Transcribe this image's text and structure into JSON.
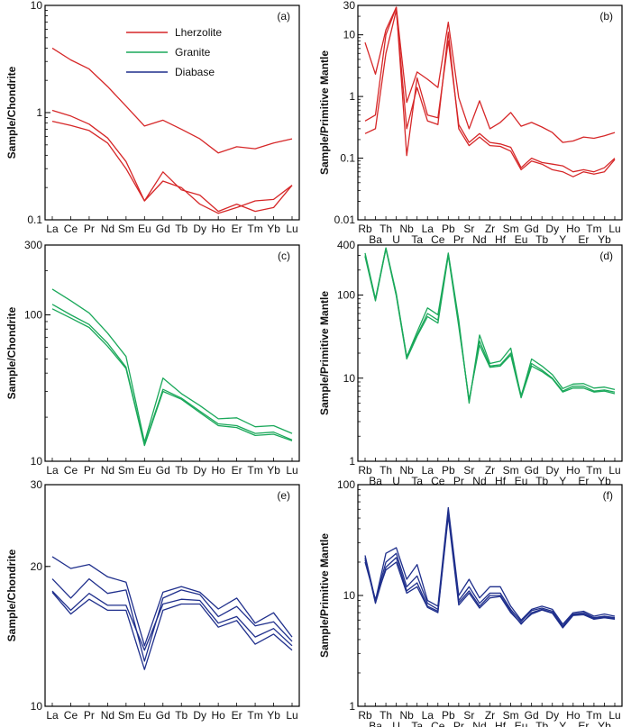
{
  "legend": [
    {
      "label": "Lherzolite",
      "color": "#d62728"
    },
    {
      "label": "Granite",
      "color": "#1aa85a"
    },
    {
      "label": "Diabase",
      "color": "#1f2f8c"
    }
  ],
  "chart_data": [
    {
      "type": "line",
      "panel": "(a)",
      "ylabel": "Sample/Chondrite",
      "yscale": "log",
      "ylim": [
        0.1,
        10
      ],
      "yticks": [
        {
          "v": 0.1,
          "t": "0.1"
        },
        {
          "v": 1,
          "t": "1"
        },
        {
          "v": 10,
          "t": "10"
        }
      ],
      "categories": [
        "La",
        "Ce",
        "Pr",
        "Nd",
        "Sm",
        "Eu",
        "Gd",
        "Tb",
        "Dy",
        "Ho",
        "Er",
        "Tm",
        "Yb",
        "Lu"
      ],
      "color": "#d62728",
      "series": [
        {
          "values": [
            4.0,
            3.1,
            2.55,
            1.75,
            1.15,
            0.75,
            0.85,
            0.7,
            0.57,
            0.42,
            0.48,
            0.46,
            0.52,
            0.57
          ]
        },
        {
          "values": [
            1.05,
            0.93,
            0.78,
            0.58,
            0.35,
            0.15,
            0.28,
            0.19,
            0.17,
            0.12,
            0.14,
            0.12,
            0.13,
            0.21
          ]
        },
        {
          "values": [
            0.83,
            0.76,
            0.68,
            0.52,
            0.3,
            0.15,
            0.23,
            0.2,
            0.14,
            0.115,
            0.13,
            0.15,
            0.155,
            0.21
          ]
        }
      ]
    },
    {
      "type": "line",
      "panel": "(b)",
      "ylabel": "Sample/Primitive Mantle",
      "yscale": "log",
      "ylim": [
        0.01,
        30
      ],
      "yticks": [
        {
          "v": 0.01,
          "t": "0.01"
        },
        {
          "v": 0.1,
          "t": "0.1"
        },
        {
          "v": 1,
          "t": "1"
        },
        {
          "v": 10,
          "t": "10"
        },
        {
          "v": 30,
          "t": "30"
        }
      ],
      "categories": [
        "Rb",
        "Ba",
        "Th",
        "U",
        "Nb",
        "Ta",
        "La",
        "Ce",
        "Pb",
        "Pr",
        "Sr",
        "Nd",
        "Zr",
        "Hf",
        "Sm",
        "Eu",
        "Gd",
        "Tb",
        "Dy",
        "Y",
        "Ho",
        "Er",
        "Tm",
        "Yb",
        "Lu"
      ],
      "color": "#d62728",
      "series": [
        {
          "values": [
            7.5,
            2.3,
            12,
            28,
            0.8,
            2.5,
            1.9,
            1.4,
            16,
            0.95,
            0.3,
            0.85,
            0.3,
            0.38,
            0.55,
            0.33,
            0.38,
            0.32,
            0.26,
            0.18,
            0.19,
            0.22,
            0.21,
            0.23,
            0.26
          ]
        },
        {
          "values": [
            0.4,
            0.5,
            10,
            28,
            0.11,
            2.0,
            0.5,
            0.45,
            8,
            0.35,
            0.18,
            0.25,
            0.18,
            0.17,
            0.15,
            0.07,
            0.1,
            0.085,
            0.08,
            0.075,
            0.06,
            0.065,
            0.06,
            0.07,
            0.1
          ]
        },
        {
          "values": [
            0.25,
            0.3,
            5,
            25,
            0.3,
            1.4,
            0.4,
            0.35,
            11,
            0.3,
            0.16,
            0.22,
            0.16,
            0.155,
            0.13,
            0.065,
            0.09,
            0.08,
            0.065,
            0.06,
            0.05,
            0.06,
            0.055,
            0.06,
            0.095
          ]
        }
      ]
    },
    {
      "type": "line",
      "panel": "(c)",
      "ylabel": "Sample/Chondrite",
      "yscale": "log",
      "ylim": [
        10,
        300
      ],
      "yticks": [
        {
          "v": 10,
          "t": "10"
        },
        {
          "v": 100,
          "t": "100"
        },
        {
          "v": 300,
          "t": "300"
        }
      ],
      "categories": [
        "La",
        "Ce",
        "Pr",
        "Nd",
        "Sm",
        "Eu",
        "Gd",
        "Tb",
        "Dy",
        "Ho",
        "Er",
        "Tm",
        "Yb",
        "Lu"
      ],
      "color": "#1aa85a",
      "series": [
        {
          "values": [
            150,
            125,
            103,
            75,
            52,
            13.5,
            37,
            29,
            24,
            19.5,
            19.8,
            17.2,
            17.5,
            15.5
          ]
        },
        {
          "values": [
            118,
            100,
            86,
            64,
            44,
            13,
            31,
            27,
            22,
            18,
            17.5,
            15.5,
            15.8,
            14
          ]
        },
        {
          "values": [
            110,
            95,
            82,
            61,
            43,
            12.8,
            30,
            26.5,
            21.5,
            17.5,
            17,
            15,
            15.3,
            13.8
          ]
        }
      ]
    },
    {
      "type": "line",
      "panel": "(d)",
      "ylabel": "Sample/Primitive Mantle",
      "yscale": "log",
      "ylim": [
        1,
        400
      ],
      "yticks": [
        {
          "v": 1,
          "t": "1"
        },
        {
          "v": 10,
          "t": "10"
        },
        {
          "v": 100,
          "t": "100"
        },
        {
          "v": 400,
          "t": "400"
        }
      ],
      "categories": [
        "Rb",
        "Ba",
        "Th",
        "U",
        "Nb",
        "Ta",
        "La",
        "Ce",
        "Pb",
        "Pr",
        "Sr",
        "Nd",
        "Zr",
        "Hf",
        "Sm",
        "Eu",
        "Gd",
        "Tb",
        "Dy",
        "Y",
        "Ho",
        "Er",
        "Tm",
        "Yb",
        "Lu"
      ],
      "color": "#1aa85a",
      "series": [
        {
          "values": [
            320,
            90,
            370,
            105,
            18,
            36,
            70,
            58,
            320,
            50,
            5,
            33,
            15,
            16,
            23,
            6,
            17,
            14,
            11,
            7.5,
            8.5,
            8.6,
            7.6,
            7.8,
            7.3
          ]
        },
        {
          "values": [
            300,
            88,
            365,
            100,
            18,
            33,
            60,
            50,
            310,
            45,
            5.2,
            28,
            14,
            14.5,
            20,
            6.2,
            15,
            12.5,
            10,
            7,
            8,
            8,
            7,
            7.2,
            6.8
          ]
        },
        {
          "values": [
            290,
            85,
            360,
            98,
            17,
            32,
            55,
            46,
            300,
            42,
            5.5,
            25,
            13.5,
            14,
            19,
            5.8,
            14,
            12,
            9.8,
            6.8,
            7.6,
            7.6,
            6.8,
            7,
            6.5
          ]
        }
      ]
    },
    {
      "type": "line",
      "panel": "(e)",
      "ylabel": "Sample/Chondrite",
      "yscale": "log",
      "ylim": [
        10,
        30
      ],
      "yticks": [
        {
          "v": 10,
          "t": "10"
        },
        {
          "v": 20,
          "t": "20"
        },
        {
          "v": 30,
          "t": "30"
        }
      ],
      "categories": [
        "La",
        "Ce",
        "Pr",
        "Nd",
        "Sm",
        "Eu",
        "Gd",
        "Tb",
        "Dy",
        "Ho",
        "Er",
        "Tm",
        "Yb",
        "Lu"
      ],
      "color": "#1f2f8c",
      "series": [
        {
          "values": [
            21,
            19.8,
            20.2,
            19,
            18.5,
            13.5,
            17.6,
            18.1,
            17.6,
            16.2,
            17.1,
            15.1,
            15.9,
            14.1
          ]
        },
        {
          "values": [
            18.8,
            17.1,
            18.8,
            17.5,
            17.8,
            12.5,
            17.1,
            17.8,
            17.4,
            15.6,
            16.4,
            14.9,
            15.2,
            13.8
          ]
        },
        {
          "values": [
            17.7,
            16.1,
            17.5,
            16.5,
            16.5,
            13.2,
            16.6,
            17.0,
            16.9,
            15.1,
            15.6,
            14.1,
            14.7,
            13.5
          ]
        },
        {
          "values": [
            17.6,
            15.8,
            17.0,
            16.1,
            16.1,
            12.0,
            16.1,
            16.6,
            16.6,
            14.8,
            15.3,
            13.6,
            14.3,
            13.2
          ]
        }
      ]
    },
    {
      "type": "line",
      "panel": "(f)",
      "ylabel": "Sample/Primitive Mantle",
      "yscale": "log",
      "ylim": [
        1,
        100
      ],
      "yticks": [
        {
          "v": 1,
          "t": "1"
        },
        {
          "v": 10,
          "t": "10"
        },
        {
          "v": 100,
          "t": "100"
        }
      ],
      "categories": [
        "Rb",
        "Ba",
        "Th",
        "U",
        "Nb",
        "Ta",
        "La",
        "Ce",
        "Pb",
        "Pr",
        "Sr",
        "Nd",
        "Zr",
        "Hf",
        "Sm",
        "Eu",
        "Gd",
        "Tb",
        "Dy",
        "Y",
        "Ho",
        "Er",
        "Tm",
        "Yb",
        "Lu"
      ],
      "color": "#1f2f8c",
      "series": [
        {
          "values": [
            23,
            9,
            24,
            27,
            14,
            19,
            9,
            8,
            62,
            10,
            14,
            9.5,
            12,
            12,
            8,
            6,
            7.5,
            8,
            7.5,
            5.5,
            7,
            7.2,
            6.5,
            6.8,
            6.5
          ]
        },
        {
          "values": [
            21,
            9,
            20,
            24,
            12,
            15,
            8.5,
            7.5,
            58,
            9,
            12,
            8.5,
            10.5,
            10.5,
            7.5,
            5.8,
            7.3,
            7.7,
            7.2,
            5.3,
            6.8,
            7,
            6.3,
            6.5,
            6.3
          ]
        },
        {
          "values": [
            22,
            8.5,
            18,
            22,
            11,
            13,
            8,
            7.2,
            55,
            8.6,
            11,
            8,
            10,
            10,
            7.2,
            5.5,
            7,
            7.5,
            7,
            5.2,
            6.7,
            6.8,
            6.2,
            6.4,
            6.2
          ]
        },
        {
          "values": [
            20,
            9.2,
            17,
            20,
            10.5,
            12,
            7.8,
            7,
            52,
            8.2,
            10.5,
            7.7,
            9.5,
            9.8,
            7,
            5.6,
            6.8,
            7.4,
            6.9,
            5.1,
            6.6,
            6.7,
            6.1,
            6.3,
            6.1
          ]
        }
      ]
    }
  ]
}
